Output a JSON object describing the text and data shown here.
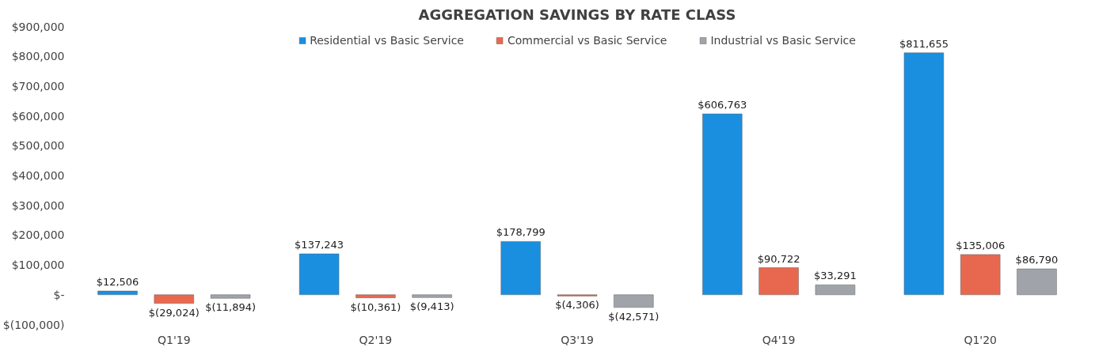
{
  "chart_data": {
    "type": "bar",
    "title": "AGGREGATION SAVINGS BY RATE CLASS",
    "categories": [
      "Q1'19",
      "Q2'19",
      "Q3'19",
      "Q4'19",
      "Q1'20"
    ],
    "series": [
      {
        "name": "Residential vs Basic Service",
        "color": "#1a8fe0",
        "values": [
          12506,
          137243,
          178799,
          606763,
          811655
        ],
        "value_labels": [
          "$12,506",
          "$137,243",
          "$178,799",
          "$606,763",
          "$811,655"
        ]
      },
      {
        "name": "Commercial vs Basic Service",
        "color": "#e8684f",
        "values": [
          -29024,
          -10361,
          -4306,
          90722,
          135006
        ],
        "value_labels": [
          "$(29,024)",
          "$(10,361)",
          "$(4,306)",
          "$90,722",
          "$135,006"
        ]
      },
      {
        "name": "Industrial vs Basic Service",
        "color": "#a0a4aa",
        "values": [
          -11894,
          -9413,
          -42571,
          33291,
          86790
        ],
        "value_labels": [
          "$(11,894)",
          "$(9,413)",
          "$(42,571)",
          "$33,291",
          "$86,790"
        ]
      }
    ],
    "ylim": [
      -100000,
      900000
    ],
    "yticks": [
      {
        "value": -100000,
        "label": "$(100,000)"
      },
      {
        "value": 0,
        "label": "$-"
      },
      {
        "value": 100000,
        "label": "$100,000"
      },
      {
        "value": 200000,
        "label": "$200,000"
      },
      {
        "value": 300000,
        "label": "$300,000"
      },
      {
        "value": 400000,
        "label": "$400,000"
      },
      {
        "value": 500000,
        "label": "$500,000"
      },
      {
        "value": 600000,
        "label": "$600,000"
      },
      {
        "value": 700000,
        "label": "$700,000"
      },
      {
        "value": 800000,
        "label": "$800,000"
      },
      {
        "value": 900000,
        "label": "$900,000"
      }
    ],
    "legend": "top",
    "grid": false
  }
}
